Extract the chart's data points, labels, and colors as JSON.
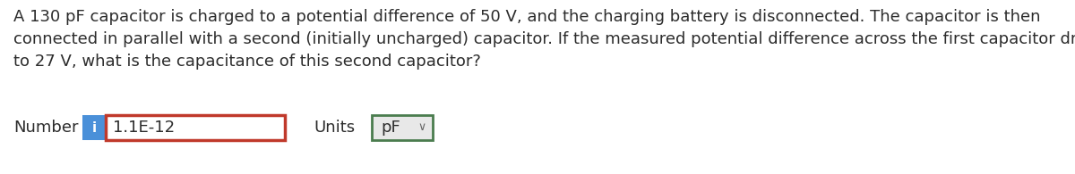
{
  "question_text_line1": "A 130 pF capacitor is charged to a potential difference of 50 V, and the charging battery is disconnected. The capacitor is then",
  "question_text_line2": "connected in parallel with a second (initially uncharged) capacitor. If the measured potential difference across the first capacitor drops",
  "question_text_line3": "to 27 V, what is the capacitance of this second capacitor?",
  "label_number": "Number",
  "info_button_color": "#4a90d9",
  "info_button_text": "i",
  "input_value": "1.1E-12",
  "input_border_color": "#c0392b",
  "input_bg_color": "#ffffff",
  "label_units": "Units",
  "units_value": "pF",
  "units_border_color": "#4a7c4e",
  "units_bg_color": "#e8e8e8",
  "bg_color": "#ffffff",
  "text_color": "#2c2c2c",
  "font_size_question": 13.0,
  "font_size_ui": 13.0,
  "chevron_color": "#666666"
}
